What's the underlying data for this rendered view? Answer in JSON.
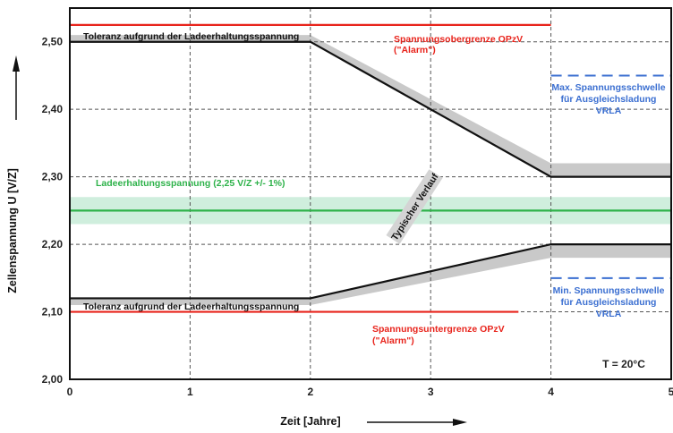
{
  "chart_data": {
    "type": "line",
    "xlabel": "Zeit [Jahre]",
    "ylabel": "Zellenspannung U [V/Z]",
    "xlim": [
      0,
      5
    ],
    "ylim": [
      2.0,
      2.55
    ],
    "x_ticks": [
      "0",
      "1",
      "2",
      "3",
      "4",
      "5"
    ],
    "y_ticks": [
      "2,00",
      "2,10",
      "2,20",
      "2,30",
      "2,40",
      "2,50"
    ],
    "grid": true,
    "series": [
      {
        "name": "Spannungsobergrenze OPzV",
        "color": "#e8241c",
        "x": [
          0,
          4
        ],
        "y": [
          2.525,
          2.525
        ]
      },
      {
        "name": "Spannungsuntergrenze OPzV",
        "color": "#e8241c",
        "x": [
          0,
          3.73
        ],
        "y": [
          2.1,
          2.1
        ]
      },
      {
        "name": "Max. Spannungsschwelle",
        "color": "#3b6fd1",
        "dashed": true,
        "x": [
          4,
          5
        ],
        "y": [
          2.45,
          2.45
        ]
      },
      {
        "name": "Min. Spannungsschwelle",
        "color": "#3b6fd1",
        "dashed": true,
        "x": [
          4,
          5
        ],
        "y": [
          2.15,
          2.15
        ]
      },
      {
        "name": "Ladeerhaltungsspannung",
        "color": "#2eb24a",
        "x": [
          0,
          5
        ],
        "y": [
          2.25,
          2.25
        ]
      },
      {
        "name": "Typischer Verlauf oben",
        "color": "#111111",
        "x": [
          0,
          2,
          4,
          5
        ],
        "y": [
          2.5,
          2.5,
          2.3,
          2.3
        ]
      },
      {
        "name": "Typischer Verlauf unten",
        "color": "#111111",
        "x": [
          0,
          2,
          4,
          5
        ],
        "y": [
          2.12,
          2.12,
          2.2,
          2.2
        ]
      }
    ],
    "bands": [
      {
        "name": "Toleranz oben",
        "color": "#c9c9c9",
        "x": [
          0,
          2,
          4,
          5
        ],
        "low": [
          2.5,
          2.5,
          2.3,
          2.3
        ],
        "high": [
          2.51,
          2.51,
          2.32,
          2.32
        ]
      },
      {
        "name": "Toleranz unten",
        "color": "#c9c9c9",
        "x": [
          0,
          2,
          4,
          5
        ],
        "low": [
          2.11,
          2.11,
          2.18,
          2.18
        ],
        "high": [
          2.12,
          2.12,
          2.2,
          2.2
        ]
      },
      {
        "name": "Ladeerhaltung Toleranz",
        "color": "#cfeedd",
        "x": [
          0,
          5
        ],
        "low": [
          2.23,
          2.23
        ],
        "high": [
          2.27,
          2.27
        ]
      }
    ],
    "annotations": {
      "tol_upper": "Toleranz aufgrund der Ladeerhaltungsspannung",
      "tol_lower": "Toleranz aufgrund der Ladeerhaltungsspannung",
      "upper_limit_1": "Spannungsobergrenze OPzV",
      "upper_limit_2": "(\"Alarm\")",
      "lower_limit_1": "Spannungsuntergrenze OPzV",
      "lower_limit_2": "(\"Alarm\")",
      "float_voltage": "Ladeerhaltungsspannung (2,25 V/Z +/- 1%)",
      "max_thr_1": "Max. Spannungsschwelle",
      "max_thr_2": "für Ausgleichsladung",
      "max_thr_3": "VRLA",
      "min_thr_1": "Min. Spannungsschwelle",
      "min_thr_2": "für Ausgleichsladung",
      "min_thr_3": "VRLA",
      "typical": "Typischer Verlauf",
      "temp": "T = 20°C"
    },
    "colors": {
      "red": "#e8241c",
      "blue": "#3b6fd1",
      "green": "#2eb24a",
      "black": "#111111",
      "band_gray": "#c9c9c9",
      "band_green": "#cfeedd"
    }
  }
}
